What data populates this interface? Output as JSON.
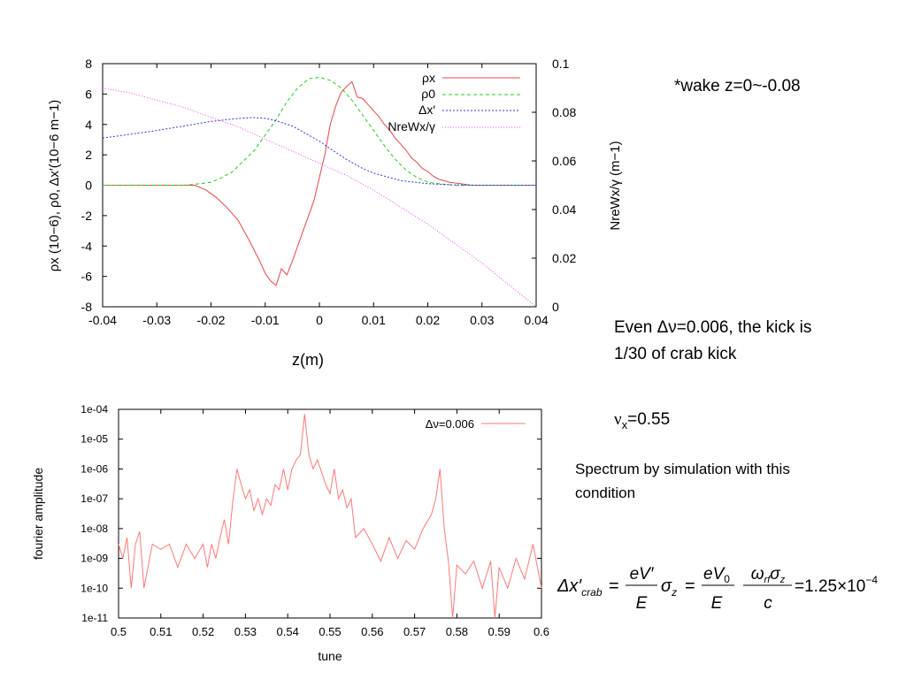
{
  "notes": {
    "wake": "*wake z=0~-0.08",
    "even_line1": "Even Δν=0.006, the kick is",
    "even_line2": "1/30 of crab kick",
    "nu_sym": "ν",
    "nu_sub": "x",
    "nu_val": "=0.55",
    "spectrum_line1": "Spectrum by simulation with this",
    "spectrum_line2": "condition"
  },
  "equation": {
    "lhs": "Δx′",
    "lhs_sub": "crab",
    "eq": "=",
    "frac1_num": "eV′",
    "frac1_den": "E",
    "sigma": "σ",
    "sigma_sub": "z",
    "frac2_num": "eV",
    "frac2_num_sub": "0",
    "frac2_den": "E",
    "frac3_num_omega": "ω",
    "frac3_num_omega_sub": "rf",
    "frac3_num_sigma": "σ",
    "frac3_num_sigma_sub": "z",
    "frac3_den": "c",
    "result": "=1.25×10",
    "result_exp": "−4"
  },
  "colors": {
    "rho_x": "#ee4444",
    "rho_0": "#22cc22",
    "delta_x": "#3333dd",
    "wake": "#ee44ee",
    "spectrum": "#ff7777"
  },
  "chart_data": [
    {
      "type": "line",
      "xlabel": "z(m)",
      "ylabel_left": "ρx (10−6), ρ0, Δx′(10−6 m−1)",
      "ylabel_right": "NreWx/γ (m−1)",
      "xlim": [
        -0.04,
        0.04
      ],
      "ylim_left": [
        -8,
        8
      ],
      "ylim_right": [
        0,
        0.1
      ],
      "x_ticks": [
        "-0.04",
        "-0.03",
        "-0.02",
        "-0.01",
        "0",
        "0.01",
        "0.02",
        "0.03",
        "0.04"
      ],
      "y_ticks_left": [
        "8",
        "6",
        "4",
        "2",
        "0",
        "-2",
        "-4",
        "-6",
        "-8"
      ],
      "y_ticks_right": [
        "0.1",
        "0.08",
        "0.06",
        "0.04",
        "0.02",
        "0"
      ],
      "legend_position": "top-right",
      "series": [
        {
          "name": "ρx",
          "axis": "left",
          "x": [
            -0.04,
            -0.03,
            -0.025,
            -0.023,
            -0.021,
            -0.019,
            -0.017,
            -0.015,
            -0.013,
            -0.012,
            -0.011,
            -0.01,
            -0.009,
            -0.008,
            -0.007,
            -0.006,
            -0.005,
            -0.004,
            -0.003,
            -0.002,
            -0.001,
            0.0,
            0.001,
            0.002,
            0.003,
            0.004,
            0.005,
            0.006,
            0.007,
            0.008,
            0.009,
            0.01,
            0.011,
            0.012,
            0.013,
            0.014,
            0.015,
            0.016,
            0.017,
            0.018,
            0.019,
            0.02,
            0.021,
            0.022,
            0.024,
            0.026,
            0.028,
            0.03,
            0.04
          ],
          "values": [
            0,
            0,
            0,
            0,
            -0.3,
            -0.8,
            -1.5,
            -2.3,
            -3.6,
            -4.3,
            -5.0,
            -5.8,
            -6.3,
            -6.6,
            -5.5,
            -5.9,
            -5.0,
            -4.0,
            -3.0,
            -2.0,
            -1.0,
            0.5,
            2.0,
            4.0,
            5.2,
            6.1,
            6.5,
            6.8,
            5.8,
            5.7,
            5.3,
            4.9,
            4.5,
            4.0,
            3.6,
            3.1,
            2.7,
            2.3,
            1.8,
            1.5,
            1.1,
            0.9,
            0.6,
            0.4,
            0.2,
            0.1,
            0,
            0,
            0
          ]
        },
        {
          "name": "ρ0",
          "axis": "left",
          "x": [
            -0.04,
            -0.025,
            -0.022,
            -0.02,
            -0.018,
            -0.016,
            -0.014,
            -0.012,
            -0.01,
            -0.008,
            -0.006,
            -0.004,
            -0.002,
            0.0,
            0.002,
            0.004,
            0.006,
            0.008,
            0.01,
            0.012,
            0.014,
            0.016,
            0.018,
            0.02,
            0.022,
            0.025,
            0.03,
            0.04
          ],
          "values": [
            0,
            0,
            0.1,
            0.2,
            0.5,
            0.9,
            1.6,
            2.3,
            3.3,
            4.3,
            5.5,
            6.4,
            7.0,
            7.1,
            6.9,
            6.4,
            5.6,
            4.6,
            3.6,
            2.6,
            1.7,
            1.0,
            0.5,
            0.2,
            0.1,
            0,
            0,
            0
          ]
        },
        {
          "name": "Δx′",
          "axis": "left",
          "x": [
            -0.04,
            -0.035,
            -0.03,
            -0.025,
            -0.02,
            -0.015,
            -0.012,
            -0.01,
            -0.008,
            -0.005,
            -0.002,
            0.0,
            0.002,
            0.005,
            0.008,
            0.01,
            0.015,
            0.02,
            0.025,
            0.03,
            0.04
          ],
          "values": [
            3.1,
            3.35,
            3.6,
            3.9,
            4.2,
            4.4,
            4.45,
            4.4,
            4.25,
            3.9,
            3.3,
            2.9,
            2.4,
            1.7,
            1.1,
            0.8,
            0.3,
            0.1,
            0.02,
            0,
            0
          ]
        },
        {
          "name": "NreWx/γ",
          "axis": "right",
          "x": [
            -0.04,
            -0.035,
            -0.03,
            -0.025,
            -0.02,
            -0.015,
            -0.01,
            -0.005,
            0.0,
            0.005,
            0.01,
            0.015,
            0.02,
            0.025,
            0.03,
            0.035,
            0.04
          ],
          "values": [
            0.09,
            0.088,
            0.085,
            0.082,
            0.078,
            0.074,
            0.069,
            0.064,
            0.059,
            0.054,
            0.048,
            0.041,
            0.034,
            0.026,
            0.018,
            0.009,
            0.0
          ]
        }
      ]
    },
    {
      "type": "line",
      "xlabel": "tune",
      "ylabel": "fourier amplitude",
      "xlim": [
        0.5,
        0.6
      ],
      "ylim": [
        1e-11,
        0.0001
      ],
      "yscale": "log",
      "x_ticks": [
        "0.5",
        "0.51",
        "0.52",
        "0.53",
        "0.54",
        "0.55",
        "0.56",
        "0.57",
        "0.58",
        "0.59",
        "0.6"
      ],
      "y_ticks": [
        "1e-04",
        "1e-05",
        "1e-06",
        "1e-07",
        "1e-08",
        "1e-09",
        "1e-10",
        "1e-11"
      ],
      "legend_position": "top-right",
      "series": [
        {
          "name": "Δν=0.006",
          "x": [
            0.5,
            0.501,
            0.502,
            0.503,
            0.504,
            0.505,
            0.506,
            0.508,
            0.51,
            0.512,
            0.514,
            0.516,
            0.518,
            0.52,
            0.521,
            0.522,
            0.523,
            0.524,
            0.525,
            0.526,
            0.527,
            0.528,
            0.529,
            0.53,
            0.531,
            0.532,
            0.533,
            0.534,
            0.535,
            0.536,
            0.537,
            0.538,
            0.539,
            0.54,
            0.541,
            0.542,
            0.543,
            0.544,
            0.545,
            0.546,
            0.547,
            0.548,
            0.549,
            0.55,
            0.551,
            0.552,
            0.553,
            0.554,
            0.555,
            0.556,
            0.558,
            0.56,
            0.562,
            0.564,
            0.566,
            0.568,
            0.57,
            0.572,
            0.574,
            0.575,
            0.576,
            0.577,
            0.578,
            0.579,
            0.58,
            0.582,
            0.584,
            0.586,
            0.588,
            0.589,
            0.59,
            0.592,
            0.594,
            0.596,
            0.598,
            0.6
          ],
          "values": [
            3e-09,
            1e-09,
            5e-09,
            1e-10,
            3e-09,
            8e-09,
            1e-10,
            3e-09,
            2e-09,
            3e-09,
            5e-10,
            3e-09,
            1e-09,
            3e-09,
            5e-10,
            3e-09,
            1e-09,
            5e-09,
            2e-08,
            3e-09,
            8e-08,
            1e-06,
            3e-07,
            1e-07,
            2e-07,
            4e-08,
            1e-07,
            3e-08,
            1e-07,
            6e-08,
            3e-07,
            2e-07,
            1e-06,
            2e-07,
            1e-06,
            2e-06,
            3e-06,
            7e-05,
            3e-06,
            1e-06,
            2e-06,
            8e-07,
            3e-07,
            1.5e-07,
            1e-06,
            1e-07,
            2e-07,
            5e-08,
            1e-07,
            5e-09,
            1e-08,
            3e-09,
            8e-10,
            5e-09,
            1e-09,
            4e-09,
            2e-09,
            1e-08,
            3e-08,
            1e-07,
            1e-06,
            1e-08,
            8e-10,
            1e-11,
            6e-10,
            3e-10,
            8e-10,
            1e-10,
            8e-10,
            1e-11,
            5e-10,
            1e-10,
            1e-09,
            2e-10,
            3e-09,
            1e-10
          ]
        }
      ]
    }
  ]
}
